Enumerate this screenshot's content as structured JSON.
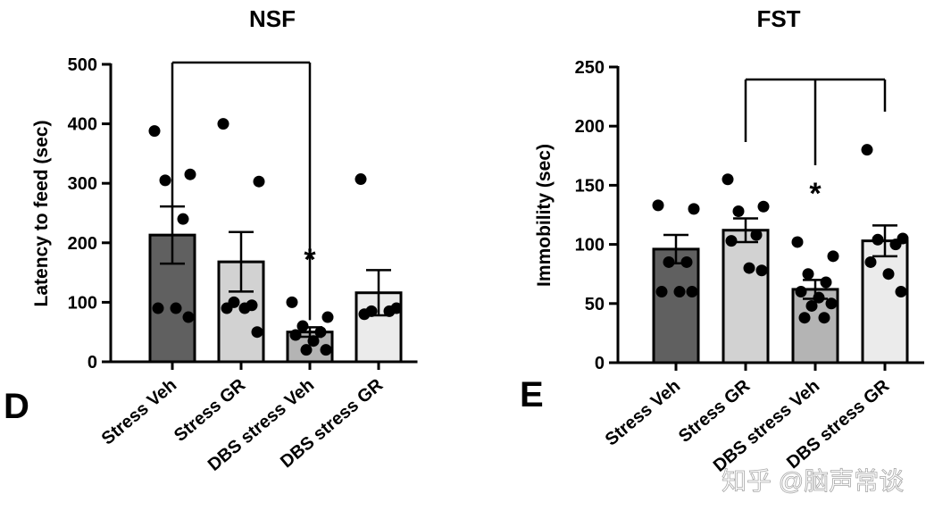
{
  "chart_data": [
    {
      "type": "bar",
      "panel_letter": "D",
      "title": "NSF",
      "xlabel": "",
      "ylabel": "Latency to feed (sec)",
      "ylim": [
        0,
        500
      ],
      "yticks": [
        0,
        100,
        200,
        300,
        400,
        500
      ],
      "categories": [
        "Stress Veh",
        "Stress GR",
        "DBS stress Veh",
        "DBS stress GR"
      ],
      "values": [
        213,
        168,
        50,
        116
      ],
      "sem": [
        48,
        50,
        8,
        38
      ],
      "bar_colors": [
        "#606060",
        "#d2d2d2",
        "#b4b4b4",
        "#ebebeb"
      ],
      "points": [
        [
          388,
          315,
          305,
          240,
          90,
          90,
          75
        ],
        [
          400,
          303,
          100,
          95,
          90,
          90,
          50
        ],
        [
          100,
          75,
          60,
          50,
          45,
          35,
          20,
          20
        ],
        [
          307,
          90,
          85,
          85,
          80
        ]
      ],
      "comparison_bracket": {
        "from": 0,
        "to": 2
      },
      "significance": [
        {
          "category": "DBS stress Veh",
          "label": "*"
        }
      ]
    },
    {
      "type": "bar",
      "panel_letter": "E",
      "title": "FST",
      "xlabel": "",
      "ylabel": "Immobility (sec)",
      "ylim": [
        0,
        250
      ],
      "yticks": [
        0,
        50,
        100,
        150,
        200,
        250
      ],
      "categories": [
        "Stress Veh",
        "Stress GR",
        "DBS stress Veh",
        "DBS stress GR"
      ],
      "values": [
        96,
        112,
        62,
        103
      ],
      "sem": [
        12,
        10,
        8,
        13
      ],
      "bar_colors": [
        "#606060",
        "#d2d2d2",
        "#b4b4b4",
        "#ebebeb"
      ],
      "points": [
        [
          133,
          130,
          85,
          85,
          60,
          60,
          60
        ],
        [
          155,
          132,
          128,
          108,
          103,
          80,
          78
        ],
        [
          102,
          90,
          75,
          68,
          60,
          55,
          50,
          48,
          38,
          38
        ],
        [
          180,
          105,
          104,
          100,
          85,
          75,
          60
        ]
      ],
      "comparison_bracket": {
        "from": 1,
        "center": 2,
        "to": 3
      },
      "significance": [
        {
          "category": "DBS stress Veh",
          "label": "*"
        }
      ]
    }
  ],
  "watermark": "知乎 @脑声常谈"
}
